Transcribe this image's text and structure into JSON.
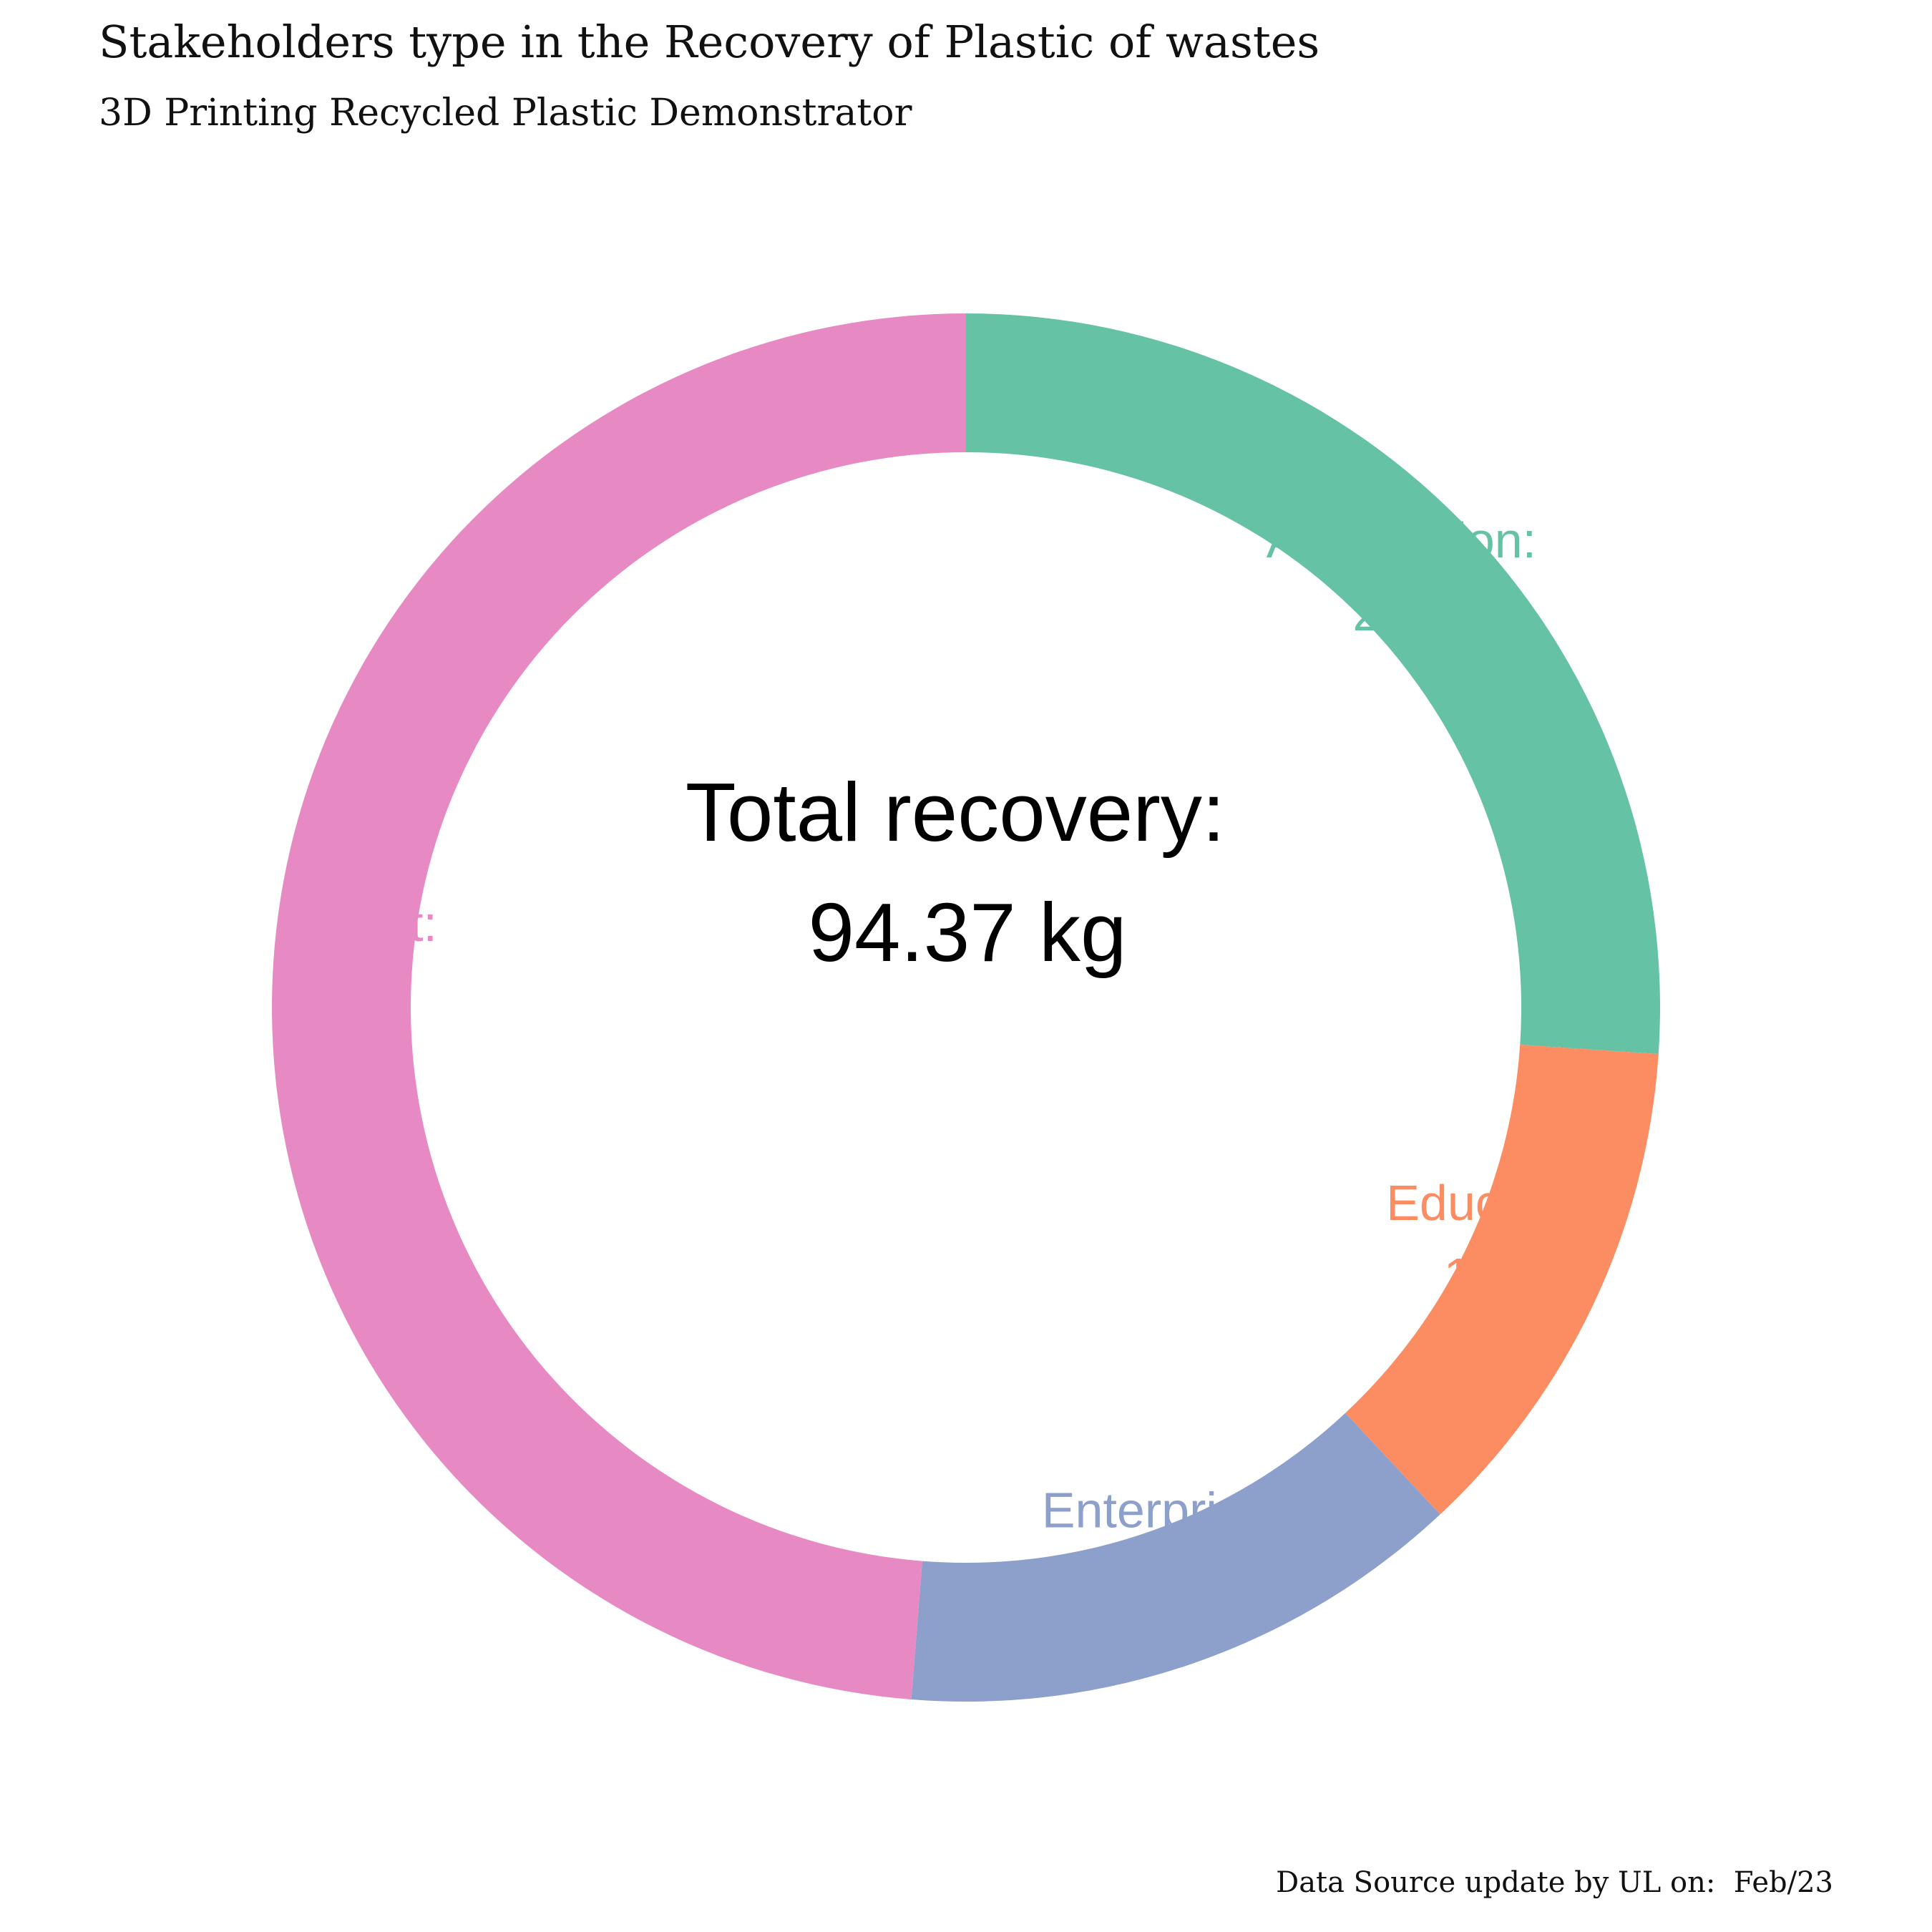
{
  "header": {
    "title": "Stakeholders type in the Recovery of Plastic of wastes",
    "subtitle": "3D Printing Recycled Plastic Demonstrator"
  },
  "footer": {
    "caption": "Data Source update by UL on:  Feb/23"
  },
  "chart_data": {
    "type": "pie",
    "style": "donut",
    "title": "Stakeholders type in the Recovery of Plastic of wastes",
    "subtitle": "3D Printing Recycled Plastic Demonstrator",
    "center_label": {
      "line1": "Total recovery:",
      "line2": "94.37 kg"
    },
    "slices": [
      {
        "name": "Association",
        "label": "Association:",
        "value": 24.6,
        "value_label": "24.6",
        "color": "#66c2a5"
      },
      {
        "name": "Education",
        "label": "Education:",
        "value": 11.29,
        "value_label": "11.29",
        "color": "#fc8d62"
      },
      {
        "name": "Enterprise",
        "label": "Enterprise:",
        "value": 12.48,
        "value_label": "12.48",
        "color": "#8da0cb"
      },
      {
        "name": "Sport",
        "label": "Sport:",
        "value": 46,
        "value_label": "46",
        "color": "#e78ac3"
      }
    ],
    "start_angle": "12 o'clock",
    "direction": "clockwise",
    "legend": "none"
  }
}
